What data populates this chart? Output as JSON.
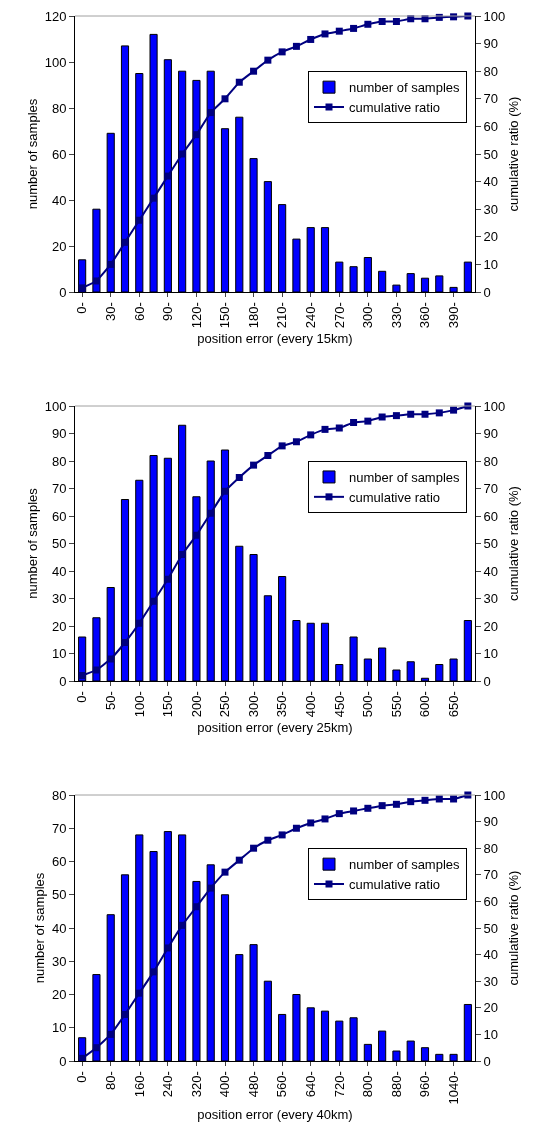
{
  "chart_data": [
    {
      "type": "bar",
      "xlabel": "position error (every 15km)",
      "ylabel": "number of samples",
      "y2label": "cumulative ratio (%)",
      "categories": [
        "0-",
        null,
        "30-",
        null,
        "60-",
        null,
        "90-",
        null,
        "120-",
        null,
        "150-",
        null,
        "180-",
        null,
        "210-",
        null,
        "240-",
        null,
        "270-",
        null,
        "300-",
        null,
        "330-",
        null,
        "360-",
        null,
        "390-",
        null
      ],
      "ylim": [
        0,
        120
      ],
      "yticks": [
        0,
        20,
        40,
        60,
        80,
        100,
        120
      ],
      "y2lim": [
        0,
        100
      ],
      "y2ticks": [
        0,
        10,
        20,
        30,
        40,
        50,
        60,
        70,
        80,
        90,
        100
      ],
      "legend": "right",
      "series": [
        {
          "name": "number of samples",
          "color": "#0000ff",
          "values": [
            14,
            36,
            69,
            107,
            95,
            112,
            101,
            96,
            92,
            96,
            71,
            76,
            58,
            48,
            38,
            23,
            28,
            28,
            13,
            11,
            15,
            9,
            3,
            8,
            6,
            7,
            2,
            13
          ]
        },
        {
          "name": "cumulative ratio",
          "type": "line",
          "axis": "y2",
          "color": "#000080",
          "marker": "square",
          "values": [
            1.5,
            4,
            10,
            18,
            26,
            34,
            42,
            50,
            57,
            65,
            70,
            76,
            80,
            84,
            87,
            89,
            91.5,
            93.5,
            94.5,
            95.5,
            97,
            98,
            98,
            99,
            99,
            99.5,
            99.7,
            100
          ]
        }
      ]
    },
    {
      "type": "bar",
      "xlabel": "position error (every 25km)",
      "ylabel": "number of samples",
      "y2label": "cumulative ratio (%)",
      "categories": [
        "0-",
        null,
        "50-",
        null,
        "100-",
        null,
        "150-",
        null,
        "200-",
        null,
        "250-",
        null,
        "300-",
        null,
        "350-",
        null,
        "400-",
        null,
        "450-",
        null,
        "500-",
        null,
        "550-",
        null,
        "600-",
        null,
        "650-",
        null
      ],
      "ylim": [
        0,
        100
      ],
      "yticks": [
        0,
        10,
        20,
        30,
        40,
        50,
        60,
        70,
        80,
        90,
        100
      ],
      "y2lim": [
        0,
        100
      ],
      "y2ticks": [
        0,
        10,
        20,
        30,
        40,
        50,
        60,
        70,
        80,
        90,
        100
      ],
      "legend": "right",
      "series": [
        {
          "name": "number of samples",
          "color": "#0000ff",
          "values": [
            16,
            23,
            34,
            66,
            73,
            82,
            81,
            93,
            67,
            80,
            84,
            49,
            46,
            31,
            38,
            22,
            21,
            21,
            6,
            16,
            8,
            12,
            4,
            7,
            1,
            6,
            8,
            22
          ]
        },
        {
          "name": "cumulative ratio",
          "type": "line",
          "axis": "y2",
          "color": "#000080",
          "marker": "square",
          "values": [
            2,
            4,
            8,
            14,
            21,
            29,
            37,
            46,
            53,
            61,
            69,
            74,
            78.5,
            82,
            85.5,
            87,
            89.5,
            91.5,
            92,
            94,
            94.5,
            96,
            96.5,
            97,
            97,
            97.5,
            98.5,
            100
          ]
        }
      ]
    },
    {
      "type": "bar",
      "xlabel": "position error (every 40km)",
      "ylabel": "number of samples",
      "y2label": "cumulative ratio (%)",
      "categories": [
        "0-",
        null,
        "80-",
        null,
        "160-",
        null,
        "240-",
        null,
        "320-",
        null,
        "400-",
        null,
        "480-",
        null,
        "560-",
        null,
        "640-",
        null,
        "720-",
        null,
        "800-",
        null,
        "880-",
        null,
        "960-",
        null,
        "1040-",
        null
      ],
      "ylim": [
        0,
        80
      ],
      "yticks": [
        0,
        10,
        20,
        30,
        40,
        50,
        60,
        70,
        80
      ],
      "y2lim": [
        0,
        100
      ],
      "y2ticks": [
        0,
        10,
        20,
        30,
        40,
        50,
        60,
        70,
        80,
        90,
        100
      ],
      "legend": "right",
      "series": [
        {
          "name": "number of samples",
          "color": "#0000ff",
          "values": [
            7,
            26,
            44,
            56,
            68,
            63,
            69,
            68,
            54,
            59,
            50,
            32,
            35,
            24,
            14,
            20,
            16,
            15,
            12,
            13,
            5,
            9,
            3,
            6,
            4,
            2,
            2,
            17
          ]
        },
        {
          "name": "cumulative ratio",
          "type": "line",
          "axis": "y2",
          "color": "#000080",
          "marker": "square",
          "values": [
            1,
            5,
            10,
            17.5,
            25.5,
            33.5,
            42.5,
            51,
            58,
            65,
            71,
            75.5,
            80,
            83,
            85,
            87.5,
            89.5,
            91,
            93,
            94,
            95,
            96,
            96.5,
            97.5,
            98,
            98.5,
            98.5,
            100
          ]
        }
      ]
    }
  ]
}
